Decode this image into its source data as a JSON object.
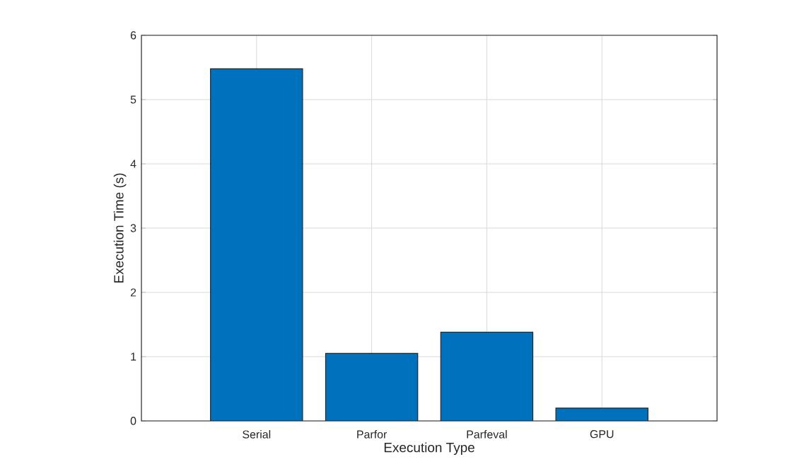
{
  "chart_data": {
    "type": "bar",
    "xlabel": "Execution Type",
    "ylabel": "Execution Time (s)",
    "categories": [
      "Serial",
      "Parfor",
      "Parfeval",
      "GPU"
    ],
    "values": [
      5.48,
      1.05,
      1.38,
      0.2
    ],
    "color": "#0072bd",
    "ylim": [
      0,
      6
    ],
    "yticks": [
      0,
      1,
      2,
      3,
      4,
      5,
      6
    ],
    "grid": true
  }
}
